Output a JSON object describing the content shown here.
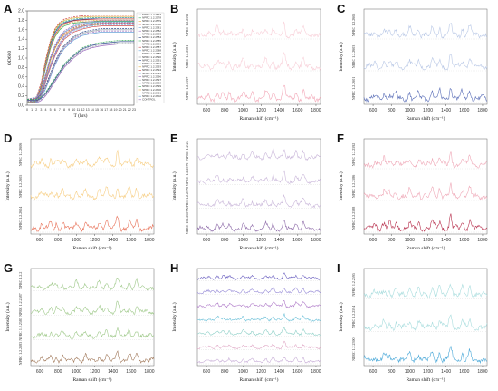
{
  "panels": [
    {
      "letter": "A",
      "type": "growth"
    },
    {
      "letter": "B",
      "type": "raman",
      "color": "#f2a7b7",
      "fade": "#f8cfd8",
      "series": [
        "NPRC 1.2.2597",
        "NPRC 1.2.2581",
        "NPRC 1.2.2599"
      ]
    },
    {
      "letter": "C",
      "type": "raman",
      "color": "#5b6fb8",
      "fade": "#b9c8e6",
      "series": [
        "NPRC 1.2.2601",
        "NPRC 1.2.2603",
        "NPRC 1.2.2605"
      ]
    },
    {
      "letter": "D",
      "type": "raman",
      "color": "#e8735a",
      "fade": "#f7cf86",
      "series": [
        "NPRC 1.2.2604",
        "NPRC 1.2.2605",
        "NPRC 1.2.2606"
      ]
    },
    {
      "letter": "E",
      "type": "raman",
      "color": "#8d6aa8",
      "fade": "#c9b6d9",
      "series": [
        "NPRC 102.2607",
        "NPRC 1.2.2578",
        "NPRC 1.2.2579",
        "NPRC 1.2.25"
      ]
    },
    {
      "letter": "F",
      "type": "raman",
      "color": "#b8324f",
      "fade": "#efa9b8",
      "series": [
        "NPRC 1.2.2588",
        "NPRC 1.2.2586",
        "NPRC 1.2.2592"
      ]
    },
    {
      "letter": "G",
      "type": "raman",
      "color": "#a27a5c",
      "fade": "#9fc98a",
      "series": [
        "NPRC 1.2.2583",
        "NPRC 1.2.2585",
        "NPRC 1.2.2587",
        "NPRC 1.2.2"
      ]
    },
    {
      "letter": "H",
      "type": "raman",
      "color": "#6a5fc0",
      "fade": "#e9b6c9",
      "series": []
    },
    {
      "letter": "I",
      "type": "raman",
      "color": "#4aa8d8",
      "fade": "#a9ddde",
      "series": [
        "NPRC 1.2.2590",
        "NPRC 1.2.2594",
        "NPRC 1.2.2595"
      ]
    }
  ],
  "raman_axis": {
    "xlabel": "Raman shift (cm⁻¹)",
    "ylabel": "Intensity (a.u.)",
    "xticks": [
      "600",
      "800",
      "1000",
      "1200",
      "1400",
      "1600",
      "1800"
    ]
  },
  "growth_axis": {
    "ylabel": "OD600",
    "xlabel": "T (hrs)",
    "yticks": [
      "0.0",
      "0.2",
      "0.4",
      "0.6",
      "0.8",
      "1.0",
      "1.2",
      "1.4",
      "1.6",
      "1.8",
      "2.0"
    ],
    "xticks": [
      "0",
      "1",
      "2",
      "3",
      "4",
      "5",
      "6",
      "7",
      "8",
      "9",
      "10",
      "11",
      "12",
      "13",
      "14",
      "15",
      "16",
      "17",
      "18",
      "19",
      "20",
      "21",
      "22",
      "23"
    ]
  },
  "legend": [
    "NPRC 1.2.2577",
    "NPRC 1.2.2578",
    "NPRC 1.2.2579",
    "NPRC 1.2.2580",
    "NPRC 1.2.2581",
    "NPRC 1.2.2582",
    "NPRC 1.2.2583",
    "NPRC 1.2.2584",
    "NPRC 1.2.2585",
    "NPRC 1.2.2586",
    "NPRC 1.2.2587",
    "NPRC 1.2.2588",
    "NPRC 1.2.2589",
    "NPRC 1.2.2590",
    "NPRC 1.2.2591",
    "NPRC 1.2.2592",
    "NPRC 1.2.2593",
    "NPRC 1.2.2594",
    "NPRC 1.2.2595",
    "NPRC 1.2.2596",
    "NPRC 1.2.2597",
    "NPRC 1.2.2598",
    "NPRC 1.2.2599",
    "NPRC 1.2.2600",
    "NPRC 1.2.2601",
    "NPRC 1.2.2602",
    "CONTROL"
  ],
  "chart_data": [
    {
      "type": "line",
      "title": "",
      "xlabel": "T (hrs)",
      "ylabel": "OD600",
      "xlim": [
        0,
        23
      ],
      "ylim": [
        0,
        2.0
      ],
      "x": [
        0,
        2,
        3,
        4,
        5,
        6,
        7,
        8,
        10,
        12,
        14,
        16,
        18,
        20,
        22,
        23
      ],
      "series": [
        {
          "values": [
            0.05,
            0.1,
            0.4,
            0.9,
            1.3,
            1.55,
            1.68,
            1.75,
            1.8,
            1.82,
            1.83,
            1.83,
            1.83,
            1.83,
            1.83,
            1.83
          ]
        },
        {
          "values": [
            0.05,
            0.1,
            0.35,
            0.8,
            1.2,
            1.45,
            1.6,
            1.68,
            1.74,
            1.76,
            1.77,
            1.78,
            1.78,
            1.78,
            1.78,
            1.78
          ]
        },
        {
          "values": [
            0.05,
            0.08,
            0.25,
            0.6,
            0.95,
            1.2,
            1.38,
            1.5,
            1.62,
            1.68,
            1.7,
            1.72,
            1.72,
            1.72,
            1.72,
            1.72
          ]
        },
        {
          "values": [
            0.05,
            0.07,
            0.2,
            0.5,
            0.8,
            1.05,
            1.25,
            1.4,
            1.55,
            1.62,
            1.66,
            1.68,
            1.68,
            1.68,
            1.68,
            1.68
          ]
        },
        {
          "values": [
            0.05,
            0.06,
            0.15,
            0.35,
            0.6,
            0.85,
            1.05,
            1.2,
            1.38,
            1.48,
            1.52,
            1.55,
            1.55,
            1.55,
            1.55,
            1.55
          ]
        },
        {
          "values": [
            0.05,
            0.05,
            0.1,
            0.2,
            0.35,
            0.5,
            0.65,
            0.8,
            1.0,
            1.15,
            1.22,
            1.26,
            1.28,
            1.3,
            1.3,
            1.3
          ]
        },
        {
          "values": [
            0.05,
            0.05,
            0.05,
            0.05,
            0.05,
            0.05,
            0.05,
            0.05,
            0.05,
            0.05,
            0.05,
            0.05,
            0.05,
            0.05,
            0.05,
            0.05
          ]
        }
      ]
    },
    {
      "type": "line",
      "title": "",
      "xlabel": "Raman shift (cm⁻¹)",
      "ylabel": "Intensity (a.u.)",
      "xlim": [
        500,
        1850
      ],
      "peaks": [
        {
          "x": 620,
          "h": 0.25
        },
        {
          "x": 720,
          "h": 0.45
        },
        {
          "x": 780,
          "h": 0.35
        },
        {
          "x": 850,
          "h": 0.4
        },
        {
          "x": 1000,
          "h": 0.5
        },
        {
          "x": 1100,
          "h": 0.45
        },
        {
          "x": 1250,
          "h": 0.55
        },
        {
          "x": 1330,
          "h": 0.6
        },
        {
          "x": 1450,
          "h": 1.0
        },
        {
          "x": 1580,
          "h": 0.55
        },
        {
          "x": 1660,
          "h": 0.7
        }
      ]
    }
  ]
}
